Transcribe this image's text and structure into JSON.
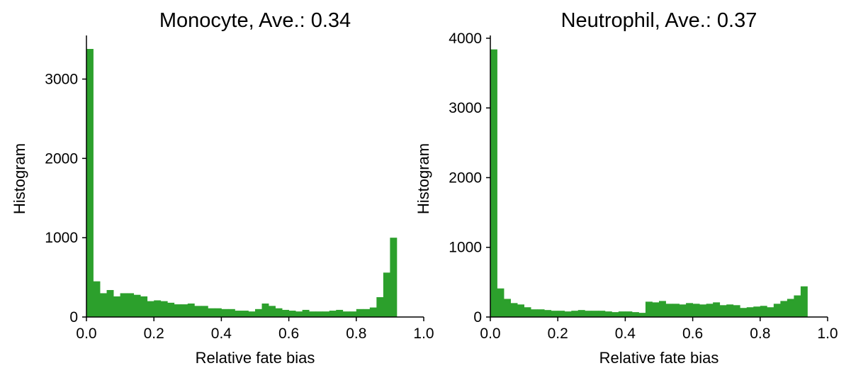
{
  "chart_data": [
    {
      "type": "bar",
      "title": "Monocyte, Ave.: 0.34",
      "xlabel": "Relative fate bias",
      "ylabel": "Histogram",
      "xlim": [
        0,
        1
      ],
      "ylim": [
        0,
        3550
      ],
      "xticks": [
        "0.0",
        "0.2",
        "0.4",
        "0.6",
        "0.8",
        "1.0"
      ],
      "yticks": [
        0,
        1000,
        2000,
        3000
      ],
      "bin_width": 0.02,
      "color": "#2ca02c",
      "values": [
        3380,
        450,
        300,
        340,
        260,
        300,
        300,
        280,
        260,
        200,
        210,
        200,
        180,
        160,
        160,
        170,
        140,
        140,
        110,
        110,
        100,
        100,
        80,
        80,
        70,
        100,
        170,
        140,
        110,
        90,
        80,
        70,
        90,
        70,
        70,
        70,
        80,
        90,
        70,
        70,
        100,
        100,
        120,
        250,
        560,
        1000
      ]
    },
    {
      "type": "bar",
      "title": "Neutrophil, Ave.: 0.37",
      "xlabel": "Relative fate bias",
      "ylabel": "Histogram",
      "xlim": [
        0,
        1
      ],
      "ylim": [
        0,
        4040
      ],
      "xticks": [
        "0.0",
        "0.2",
        "0.4",
        "0.6",
        "0.8",
        "1.0"
      ],
      "yticks": [
        0,
        1000,
        2000,
        3000,
        4000
      ],
      "bin_width": 0.02,
      "color": "#2ca02c",
      "values": [
        3840,
        410,
        260,
        200,
        180,
        140,
        110,
        110,
        100,
        90,
        90,
        80,
        90,
        100,
        90,
        90,
        90,
        80,
        70,
        80,
        80,
        70,
        60,
        220,
        210,
        230,
        190,
        190,
        180,
        200,
        190,
        180,
        190,
        210,
        170,
        180,
        170,
        130,
        140,
        150,
        160,
        140,
        190,
        230,
        260,
        310,
        440
      ]
    }
  ]
}
